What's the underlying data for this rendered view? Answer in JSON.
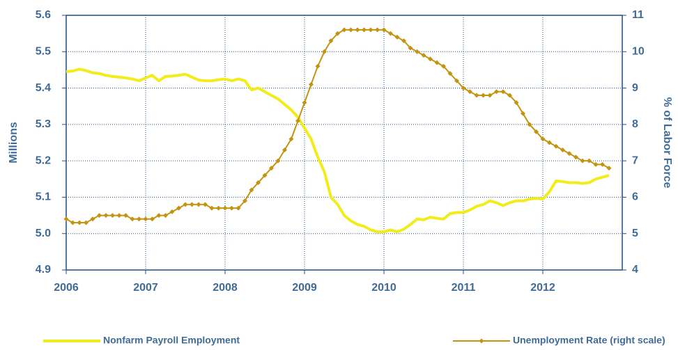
{
  "chart_data": {
    "type": "line",
    "ylabel": "Millions",
    "y2label": "% of Labor Force",
    "x": [
      2006,
      2006.083,
      2006.167,
      2006.25,
      2006.333,
      2006.417,
      2006.5,
      2006.583,
      2006.667,
      2006.75,
      2006.833,
      2006.917,
      2007,
      2007.083,
      2007.167,
      2007.25,
      2007.333,
      2007.417,
      2007.5,
      2007.583,
      2007.667,
      2007.75,
      2007.833,
      2007.917,
      2008,
      2008.083,
      2008.167,
      2008.25,
      2008.333,
      2008.417,
      2008.5,
      2008.583,
      2008.667,
      2008.75,
      2008.833,
      2008.917,
      2009,
      2009.083,
      2009.167,
      2009.25,
      2009.333,
      2009.417,
      2009.5,
      2009.583,
      2009.667,
      2009.75,
      2009.833,
      2009.917,
      2010,
      2010.083,
      2010.167,
      2010.25,
      2010.333,
      2010.417,
      2010.5,
      2010.583,
      2010.667,
      2010.75,
      2010.833,
      2010.917,
      2011,
      2011.083,
      2011.167,
      2011.25,
      2011.333,
      2011.417,
      2011.5,
      2011.583,
      2011.667,
      2011.75,
      2011.833,
      2011.917,
      2012,
      2012.083,
      2012.167,
      2012.25,
      2012.333,
      2012.417,
      2012.5,
      2012.583,
      2012.667,
      2012.75,
      2012.833
    ],
    "xlim": [
      2006,
      2013
    ],
    "xticks": [
      2006,
      2007,
      2008,
      2009,
      2010,
      2011,
      2012
    ],
    "ylim": [
      4.9,
      5.6
    ],
    "yticks": [
      {
        "value": 4.9,
        "label": "4.9"
      },
      {
        "value": 5,
        "label": "5.0"
      },
      {
        "value": 5.1,
        "label": "5.1"
      },
      {
        "value": 5.2,
        "label": "5.2"
      },
      {
        "value": 5.3,
        "label": "5.3"
      },
      {
        "value": 5.4,
        "label": "5.4"
      },
      {
        "value": 5.5,
        "label": "5.5"
      },
      {
        "value": 5.6,
        "label": "5.6"
      }
    ],
    "y2lim": [
      4,
      11
    ],
    "y2ticks": [
      4,
      5,
      6,
      7,
      8,
      9,
      10,
      11
    ],
    "grid": true,
    "legend": "bottom",
    "series": [
      {
        "name": "Nonfarm Payroll Employment",
        "color": "#f2ec1a",
        "marker": "none",
        "values": [
          5.445,
          5.447,
          5.452,
          5.448,
          5.442,
          5.44,
          5.435,
          5.432,
          5.43,
          5.428,
          5.425,
          5.42,
          5.428,
          5.435,
          5.42,
          5.432,
          5.433,
          5.435,
          5.438,
          5.43,
          5.422,
          5.42,
          5.42,
          5.423,
          5.425,
          5.42,
          5.425,
          5.42,
          5.395,
          5.4,
          5.39,
          5.38,
          5.37,
          5.355,
          5.34,
          5.32,
          5.29,
          5.26,
          5.21,
          5.17,
          5.1,
          5.08,
          5.05,
          5.035,
          5.025,
          5.02,
          5.01,
          5.005,
          5.005,
          5.01,
          5.005,
          5.012,
          5.025,
          5.04,
          5.038,
          5.045,
          5.042,
          5.04,
          5.055,
          5.058,
          5.058,
          5.065,
          5.075,
          5.08,
          5.09,
          5.085,
          5.077,
          5.085,
          5.09,
          5.09,
          5.095,
          5.097,
          5.095,
          5.115,
          5.145,
          5.143,
          5.14,
          5.14,
          5.138,
          5.14,
          5.15,
          5.155,
          5.16
        ]
      },
      {
        "name": "Unemployment Rate (right scale)",
        "color": "#c39412",
        "marker": "diamond",
        "axis": "y2",
        "values": [
          5.4,
          5.3,
          5.3,
          5.3,
          5.4,
          5.5,
          5.5,
          5.5,
          5.5,
          5.5,
          5.4,
          5.4,
          5.4,
          5.4,
          5.5,
          5.5,
          5.6,
          5.7,
          5.8,
          5.8,
          5.8,
          5.8,
          5.7,
          5.7,
          5.7,
          5.7,
          5.7,
          5.9,
          6.2,
          6.4,
          6.6,
          6.8,
          7.0,
          7.3,
          7.6,
          8.1,
          8.6,
          9.1,
          9.6,
          10.0,
          10.3,
          10.5,
          10.6,
          10.6,
          10.6,
          10.6,
          10.6,
          10.6,
          10.6,
          10.5,
          10.4,
          10.3,
          10.1,
          10.0,
          9.9,
          9.8,
          9.7,
          9.6,
          9.4,
          9.2,
          9.0,
          8.9,
          8.8,
          8.8,
          8.8,
          8.9,
          8.9,
          8.8,
          8.6,
          8.3,
          8.0,
          7.8,
          7.6,
          7.5,
          7.4,
          7.3,
          7.2,
          7.1,
          7.0,
          7.0,
          6.9,
          6.9,
          6.8
        ]
      }
    ]
  }
}
